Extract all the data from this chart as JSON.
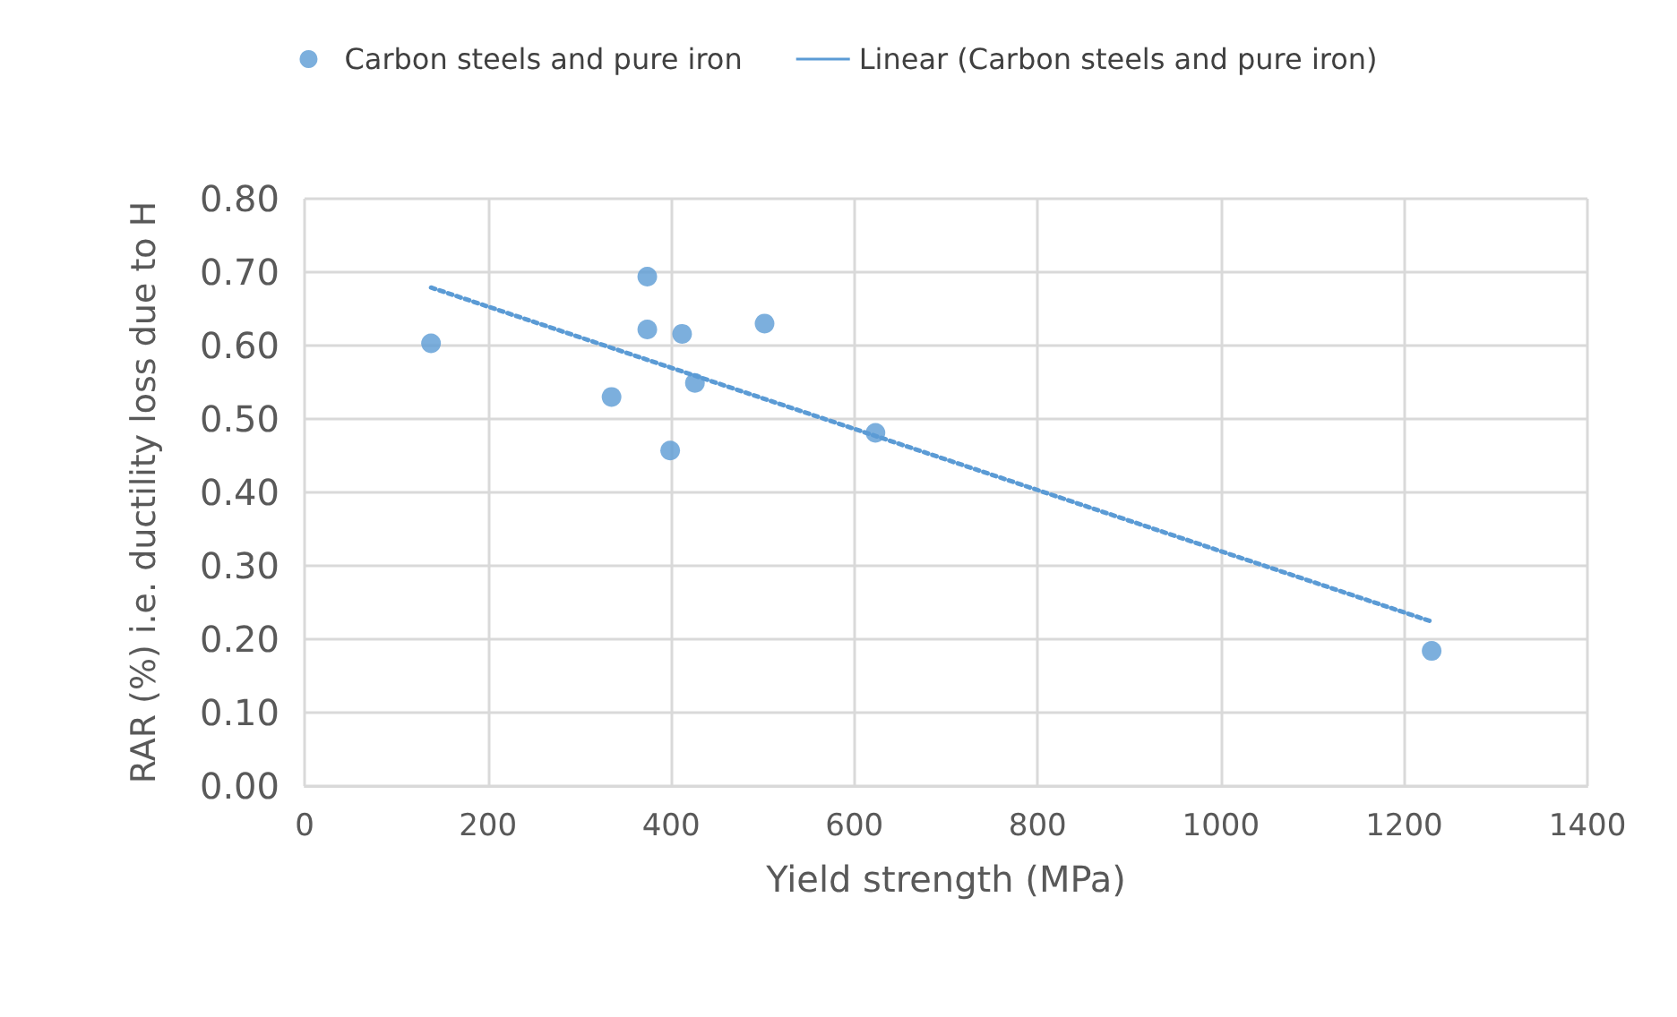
{
  "chart_data": {
    "type": "scatter",
    "xlabel": "Yield strength (MPa)",
    "ylabel": "RAR (%) i.e. ductility loss due to H",
    "series": [
      {
        "name": "Carbon steels and pure iron",
        "color": "#5b9bd5",
        "marker": "circle",
        "x": [
          138,
          374,
          374,
          412,
          502,
          335,
          426,
          399,
          623,
          1230
        ],
        "values": [
          0.603,
          0.694,
          0.622,
          0.616,
          0.63,
          0.53,
          0.549,
          0.457,
          0.481,
          0.184
        ]
      },
      {
        "name": "Linear (Carbon steels and pure iron)",
        "type": "line",
        "color": "#5b9bd5",
        "line_style": "dotted",
        "marker": "none",
        "x": [
          138,
          1230
        ],
        "values": [
          0.679,
          0.224
        ]
      }
    ],
    "xlim": [
      0,
      1400
    ],
    "xticks": [
      0,
      200,
      400,
      600,
      800,
      1000,
      1200,
      1400
    ],
    "ylim": [
      0,
      0.8
    ],
    "yticks": [
      {
        "value": 0,
        "label": "0.00"
      },
      {
        "value": 0.1,
        "label": "0.10"
      },
      {
        "value": 0.2,
        "label": "0.20"
      },
      {
        "value": 0.3,
        "label": "0.30"
      },
      {
        "value": 0.4,
        "label": "0.40"
      },
      {
        "value": 0.5,
        "label": "0.50"
      },
      {
        "value": 0.6,
        "label": "0.60"
      },
      {
        "value": 0.7,
        "label": "0.70"
      },
      {
        "value": 0.8,
        "label": "0.80"
      }
    ],
    "grid": true,
    "legend": "top"
  }
}
